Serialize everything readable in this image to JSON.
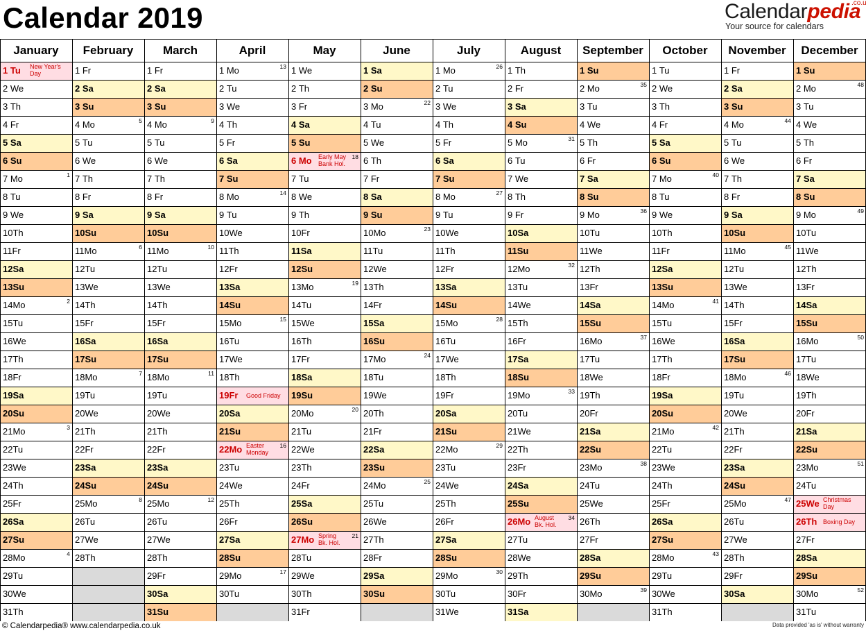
{
  "title": "Calendar 2019",
  "logo": {
    "brand_main": "Calendar",
    "brand_accent": "pedia",
    "domain_suffix": ".co.uk",
    "tagline": "Your source for calendars"
  },
  "colors": {
    "saturday": "#fff8c8",
    "sunday": "#ffcc99",
    "holiday": "#ffdde3",
    "holiday_text": "#cc0000",
    "empty_cell": "#dadada"
  },
  "months": [
    {
      "name": "January",
      "days": 31,
      "first_weekday": 1
    },
    {
      "name": "February",
      "days": 28,
      "first_weekday": 4
    },
    {
      "name": "March",
      "days": 31,
      "first_weekday": 4
    },
    {
      "name": "April",
      "days": 30,
      "first_weekday": 0
    },
    {
      "name": "May",
      "days": 31,
      "first_weekday": 2
    },
    {
      "name": "June",
      "days": 30,
      "first_weekday": 5
    },
    {
      "name": "July",
      "days": 31,
      "first_weekday": 0
    },
    {
      "name": "August",
      "days": 31,
      "first_weekday": 3
    },
    {
      "name": "September",
      "days": 30,
      "first_weekday": 6
    },
    {
      "name": "October",
      "days": 31,
      "first_weekday": 1
    },
    {
      "name": "November",
      "days": 30,
      "first_weekday": 4
    },
    {
      "name": "December",
      "days": 31,
      "first_weekday": 6
    }
  ],
  "weekday_abbr": [
    "Mo",
    "Tu",
    "We",
    "Th",
    "Fr",
    "Sa",
    "Su"
  ],
  "holidays": [
    {
      "month": 1,
      "day": 1,
      "lines": [
        "New Year's",
        "Day"
      ]
    },
    {
      "month": 4,
      "day": 19,
      "lines": [
        "Good Friday"
      ]
    },
    {
      "month": 4,
      "day": 22,
      "lines": [
        "Easter",
        "Monday"
      ]
    },
    {
      "month": 5,
      "day": 6,
      "lines": [
        "Early May",
        "Bank Hol."
      ]
    },
    {
      "month": 5,
      "day": 27,
      "lines": [
        "Spring",
        "Bk. Hol."
      ]
    },
    {
      "month": 8,
      "day": 26,
      "lines": [
        "August",
        "Bk. Hol."
      ]
    },
    {
      "month": 12,
      "day": 25,
      "lines": [
        "Christmas",
        "Day"
      ]
    },
    {
      "month": 12,
      "day": 26,
      "lines": [
        "Boxing Day"
      ]
    }
  ],
  "footer": {
    "left": "© Calendarpedia®   www.calendarpedia.co.uk",
    "right": "Data provided 'as is' without warranty"
  }
}
